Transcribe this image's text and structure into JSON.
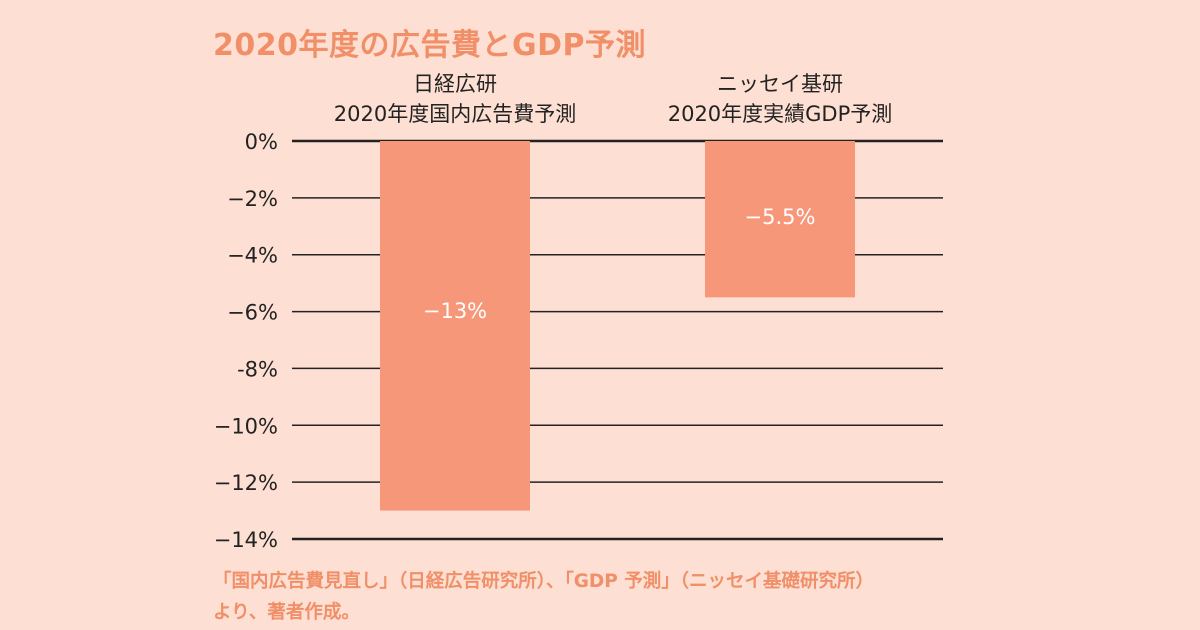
{
  "title": "2020年度の広告費とGDP予測",
  "source_note": {
    "line1": "「国内広告費見直し」（日経広告研究所）、「GDP 予測」（ニッセイ基礎研究所）",
    "line2": "より、著者作成。"
  },
  "colors": {
    "background": "#fde0d3",
    "bar": "#f7977a",
    "accent_text": "#f08f68",
    "gridline": "#222222"
  },
  "chart_data": {
    "type": "bar",
    "title": "2020年度の広告費とGDP予測",
    "categories": [
      [
        "日経広研",
        "2020年度国内広告費予測"
      ],
      [
        "ニッセイ基研",
        "2020年度実績GDP予測"
      ]
    ],
    "values": [
      -13,
      -5.5
    ],
    "data_labels": [
      "−13%",
      "−5.5%"
    ],
    "ylim": [
      -14,
      0
    ],
    "yticks": [
      0,
      -2,
      -4,
      -6,
      -8,
      -10,
      -12,
      -14
    ],
    "ytick_labels": [
      "0%",
      "−2%",
      "−4%",
      "−6%",
      "-8%",
      "−10%",
      "−12%",
      "−14%"
    ],
    "xlabel": "",
    "ylabel": "",
    "grid": true,
    "legend": "none"
  }
}
